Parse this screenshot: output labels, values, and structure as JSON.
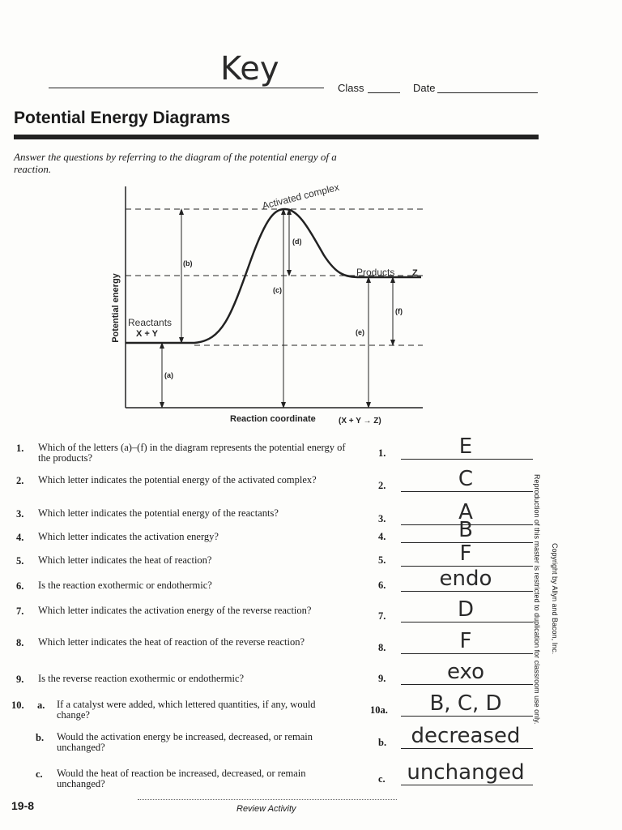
{
  "header": {
    "name_mark": "Key",
    "class_label": "Class",
    "date_label": "Date"
  },
  "title": "Potential Energy Diagrams",
  "instructions": "Answer the questions by referring to the diagram of the potential energy of a reaction.",
  "diagram": {
    "y_axis_label": "Potential energy",
    "x_axis_label": "Reaction coordinate",
    "reaction": "(X + Y → Z)",
    "letters": [
      "(a)",
      "(b)",
      "(c)",
      "(d)",
      "(e)",
      "(f)"
    ],
    "reactants_formula": "X + Y",
    "product_formula": "Z",
    "handwritten": [
      "Activated complex",
      "Reactants",
      "Products"
    ]
  },
  "questions": [
    {
      "number": "1.",
      "text": "Which of the letters (a)–(f) in the diagram represents the potential energy of the products?",
      "answer_label": "1.",
      "answer": "E"
    },
    {
      "number": "2.",
      "text": "Which letter indicates the potential energy of the activated complex?",
      "answer_label": "2.",
      "answer": "C"
    },
    {
      "number": "3.",
      "text": "Which letter indicates the potential energy of the reactants?",
      "answer_label": "3.",
      "answer": "A"
    },
    {
      "number": "4.",
      "text": "Which letter indicates the activation energy?",
      "answer_label": "4.",
      "answer": "B"
    },
    {
      "number": "5.",
      "text": "Which letter indicates the heat of reaction?",
      "answer_label": "5.",
      "answer": "F"
    },
    {
      "number": "6.",
      "text": "Is the reaction exothermic or endothermic?",
      "answer_label": "6.",
      "answer": "endo"
    },
    {
      "number": "7.",
      "text": "Which letter indicates the activation energy of the reverse reaction?",
      "answer_label": "7.",
      "answer": "D"
    },
    {
      "number": "8.",
      "text": "Which letter indicates the heat of reaction of the reverse reaction?",
      "answer_label": "8.",
      "answer": "F"
    },
    {
      "number": "9.",
      "text": "Is the reverse reaction exothermic or endothermic?",
      "answer_label": "9.",
      "answer": "exo"
    },
    {
      "number": "10.",
      "parts": [
        {
          "letter": "a.",
          "text": "If a catalyst were added, which lettered quantities, if any, would change?",
          "answer_label": "10a.",
          "answer": "B, C, D"
        },
        {
          "letter": "b.",
          "text": "Would the activation energy be increased, decreased, or remain unchanged?",
          "answer_label": "b.",
          "answer": "decreased"
        },
        {
          "letter": "c.",
          "text": "Would the heat of reaction be increased, decreased, or remain unchanged?",
          "answer_label": "c.",
          "answer": "unchanged"
        }
      ]
    }
  ],
  "side_notes": {
    "reproduction": "Reproduction of this master is restricted to duplication for classroom use only.",
    "copyright": "Copyright by Allyn and Bacon, Inc."
  },
  "footer": {
    "page": "19-8",
    "activity": "Review Activity"
  }
}
